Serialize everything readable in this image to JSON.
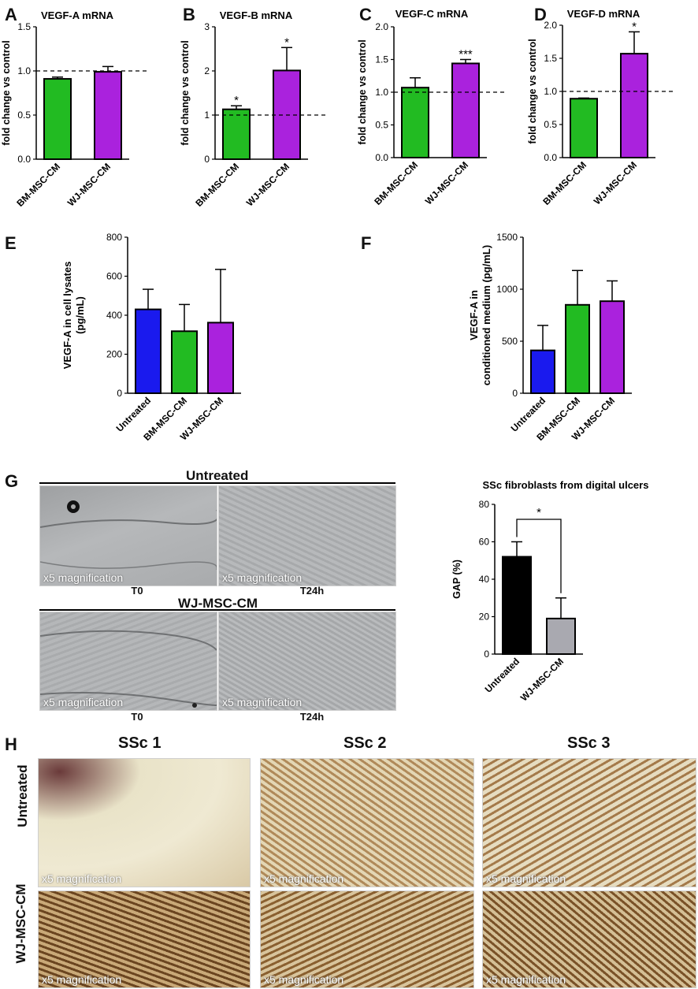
{
  "chart_data": [
    {
      "id": "A",
      "type": "bar",
      "title": "VEGF-A mRNA",
      "xlabel": "",
      "ylabel": "fold change vs control",
      "categories": [
        "BM-MSC-CM",
        "WJ-MSC-CM"
      ],
      "values": [
        0.91,
        0.99
      ],
      "errors": [
        0.02,
        0.06
      ],
      "colors": [
        "#22bb22",
        "#aa22dd"
      ],
      "ylim": [
        0,
        1.5
      ],
      "yticks": [
        "0.0",
        "0.5",
        "1.0",
        "1.5"
      ],
      "tickvals": [
        0,
        0.5,
        1.0,
        1.5
      ],
      "reference_line": 1.0,
      "annotations": [
        "",
        ""
      ]
    },
    {
      "id": "B",
      "type": "bar",
      "title": "VEGF-B mRNA",
      "xlabel": "",
      "ylabel": "fold change vs control",
      "categories": [
        "BM-MSC-CM",
        "WJ-MSC-CM"
      ],
      "values": [
        1.13,
        2.01
      ],
      "errors": [
        0.08,
        0.52
      ],
      "colors": [
        "#22bb22",
        "#aa22dd"
      ],
      "ylim": [
        0,
        3
      ],
      "yticks": [
        "0",
        "1",
        "2",
        "3"
      ],
      "tickvals": [
        0,
        1,
        2,
        3
      ],
      "reference_line": 1.0,
      "annotations": [
        "*",
        "*"
      ]
    },
    {
      "id": "C",
      "type": "bar",
      "title": "VEGF-C mRNA",
      "xlabel": "",
      "ylabel": "fold change vs control",
      "categories": [
        "BM-MSC-CM",
        "WJ-MSC-CM"
      ],
      "values": [
        1.07,
        1.44
      ],
      "errors": [
        0.15,
        0.06
      ],
      "colors": [
        "#22bb22",
        "#aa22dd"
      ],
      "ylim": [
        0,
        2.0
      ],
      "yticks": [
        "0.0",
        "0.5",
        "1.0",
        "1.5",
        "2.0"
      ],
      "tickvals": [
        0,
        0.5,
        1.0,
        1.5,
        2.0
      ],
      "reference_line": 1.0,
      "annotations": [
        "",
        "***"
      ]
    },
    {
      "id": "D",
      "type": "bar",
      "title": "VEGF-D mRNA",
      "xlabel": "",
      "ylabel": "fold change vs control",
      "categories": [
        "BM-MSC-CM",
        "WJ-MSC-CM"
      ],
      "values": [
        0.89,
        1.57
      ],
      "errors": [
        0.01,
        0.33
      ],
      "colors": [
        "#22bb22",
        "#aa22dd"
      ],
      "ylim": [
        0,
        2.0
      ],
      "yticks": [
        "0.0",
        "0.5",
        "1.0",
        "1.5",
        "2.0"
      ],
      "tickvals": [
        0,
        0.5,
        1.0,
        1.5,
        2.0
      ],
      "reference_line": 1.0,
      "annotations": [
        "",
        "*"
      ]
    },
    {
      "id": "E",
      "type": "bar",
      "title": "",
      "xlabel": "",
      "ylabel": "VEGF-A in cell lysates",
      "ylabel2": "(pg/mL)",
      "categories": [
        "Untreated",
        "BM-MSC-CM",
        "WJ-MSC-CM"
      ],
      "values": [
        430,
        318,
        362
      ],
      "errors": [
        103,
        137,
        273
      ],
      "colors": [
        "#1a1aee",
        "#22bb22",
        "#aa22dd"
      ],
      "ylim": [
        0,
        800
      ],
      "yticks": [
        "0",
        "200",
        "400",
        "600",
        "800"
      ],
      "tickvals": [
        0,
        200,
        400,
        600,
        800
      ],
      "reference_line": null,
      "annotations": [
        "",
        "",
        ""
      ]
    },
    {
      "id": "F",
      "type": "bar",
      "title": "",
      "xlabel": "",
      "ylabel": "VEGF-A in",
      "ylabel2": "conditioned medium (pg/mL)",
      "categories": [
        "Untreated",
        "BM-MSC-CM",
        "WJ-MSC-CM"
      ],
      "values": [
        412,
        850,
        885
      ],
      "errors": [
        240,
        330,
        195
      ],
      "colors": [
        "#1a1aee",
        "#22bb22",
        "#aa22dd"
      ],
      "ylim": [
        0,
        1500
      ],
      "yticks": [
        "0",
        "500",
        "1000",
        "1500"
      ],
      "tickvals": [
        0,
        500,
        1000,
        1500
      ],
      "reference_line": null,
      "annotations": [
        "",
        "",
        ""
      ]
    },
    {
      "id": "G",
      "type": "bar",
      "title": "SSc fibroblasts from digital ulcers",
      "xlabel": "",
      "ylabel": "GAP (%)",
      "categories": [
        "Untreated",
        "WJ-MSC-CM"
      ],
      "values": [
        52,
        19
      ],
      "errors": [
        8,
        11
      ],
      "colors": [
        "#000000",
        "#a9a9b0"
      ],
      "ylim": [
        0,
        80
      ],
      "yticks": [
        "0",
        "20",
        "40",
        "60",
        "80"
      ],
      "tickvals": [
        0,
        20,
        40,
        60,
        80
      ],
      "reference_line": null,
      "annotations": [
        "",
        ""
      ],
      "significance": "*"
    }
  ],
  "panel_labels": {
    "A": "A",
    "B": "B",
    "C": "C",
    "D": "D",
    "E": "E",
    "F": "F",
    "G": "G",
    "H": "H"
  },
  "panel_g": {
    "untreated_header": "Untreated",
    "treated_header": "WJ-MSC-CM",
    "caption_t0": "T0",
    "caption_t24": "T24h",
    "magnification": "x5 magnification"
  },
  "panel_h": {
    "columns": [
      "SSc 1",
      "SSc 2",
      "SSc 3"
    ],
    "rows": [
      "Untreated",
      "WJ-MSC-CM"
    ],
    "magnification": "x5 magnification"
  }
}
